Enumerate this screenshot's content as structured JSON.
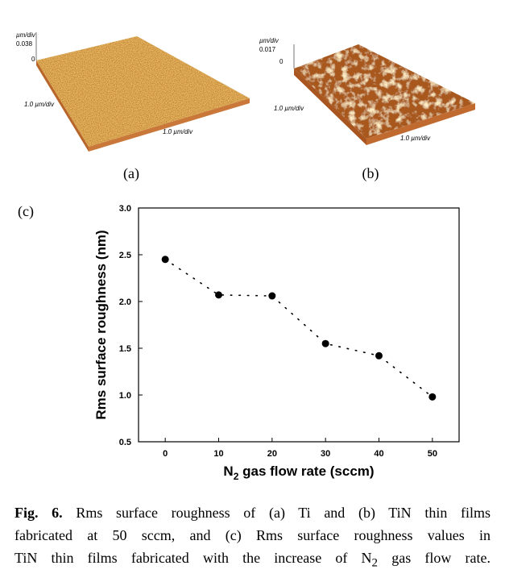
{
  "panels": [
    {
      "unit": "µm/div",
      "z_max": "0.038",
      "z_zero": "0",
      "y_scale": "1.0 µm/div",
      "x_scale": "1.0 µm/div",
      "label": "(a)"
    },
    {
      "unit": "µm/div",
      "z_max": "0.017",
      "z_zero": "0",
      "y_scale": "1.0 µm/div",
      "x_scale": "1.0 µm/div",
      "label": "(b)"
    }
  ],
  "chart_data": {
    "type": "scatter",
    "label": "(c)",
    "y_label": "Rms surface roughness (nm)",
    "x_label": {
      "main": "N",
      "sub": "2",
      "rest": " gas flow rate (sccm)"
    },
    "x": [
      0,
      10,
      20,
      30,
      40,
      50
    ],
    "series": [
      {
        "color": "#000000",
        "values": [
          2.45,
          2.07,
          2.06,
          1.55,
          1.42,
          0.98
        ]
      }
    ],
    "xlim": [
      -5,
      55
    ],
    "xticks": [
      0,
      10,
      20,
      30,
      40,
      50
    ],
    "ylim": [
      0.5,
      3.0
    ],
    "yticks": [
      0.5,
      {
        "value": 1.0,
        "label": "1.0"
      },
      1.5,
      {
        "value": 2.0,
        "label": "2.0"
      },
      2.5,
      {
        "value": 3.0,
        "label": "3.0"
      }
    ],
    "line_style": "dotted"
  },
  "caption": {
    "label": "Fig. 6.",
    "line1": " Rms surface roughness of (a) Ti and (b) TiN thin films",
    "line2": "fabricated at 50 sccm, and (c) Rms surface roughness values in",
    "line3a": "TiN thin films fabricated with the increase of N",
    "line3sub": "2",
    "line3b": " gas flow rate."
  }
}
